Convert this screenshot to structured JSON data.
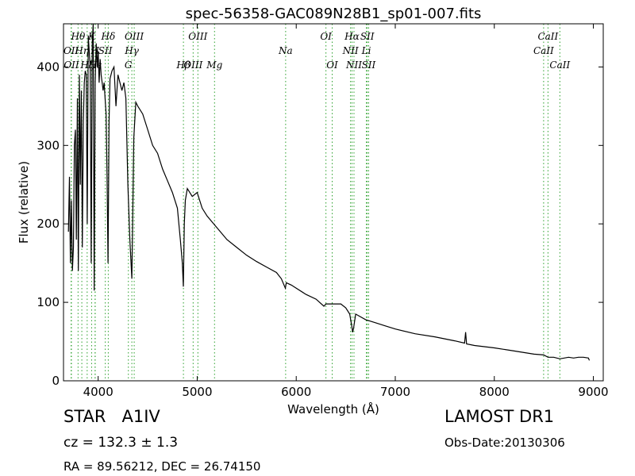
{
  "chart_data": {
    "type": "line",
    "title": "spec-56358-GAC089N28B1_sp01-007.fits",
    "xlabel": "Wavelength (Å)",
    "ylabel": "Flux (relative)",
    "xlim": [
      3650,
      9100
    ],
    "ylim": [
      0,
      455
    ],
    "xticks": [
      4000,
      5000,
      6000,
      7000,
      8000,
      9000
    ],
    "yticks": [
      0,
      100,
      200,
      300,
      400
    ],
    "grid": false,
    "line_color": "#000000",
    "marker_color": "#2ca02c",
    "spectrum": {
      "x": [
        3700,
        3710,
        3720,
        3730,
        3740,
        3750,
        3760,
        3770,
        3780,
        3790,
        3800,
        3810,
        3820,
        3830,
        3840,
        3850,
        3860,
        3870,
        3880,
        3890,
        3900,
        3910,
        3920,
        3930,
        3940,
        3950,
        3960,
        3970,
        3980,
        3990,
        4000,
        4010,
        4020,
        4030,
        4040,
        4050,
        4060,
        4070,
        4080,
        4090,
        4100,
        4110,
        4120,
        4140,
        4160,
        4180,
        4200,
        4220,
        4240,
        4260,
        4280,
        4300,
        4320,
        4340,
        4360,
        4380,
        4400,
        4450,
        4500,
        4550,
        4600,
        4650,
        4700,
        4750,
        4800,
        4830,
        4850,
        4860,
        4870,
        4880,
        4900,
        4950,
        5000,
        5050,
        5100,
        5200,
        5300,
        5400,
        5500,
        5600,
        5700,
        5800,
        5850,
        5890,
        5900,
        5950,
        6000,
        6100,
        6200,
        6280,
        6300,
        6350,
        6400,
        6450,
        6500,
        6540,
        6560,
        6570,
        6580,
        6600,
        6700,
        6800,
        6900,
        7000,
        7200,
        7400,
        7600,
        7700,
        7710,
        7720,
        7800,
        8000,
        8200,
        8400,
        8498,
        8542,
        8600,
        8662,
        8750,
        8800,
        8850,
        8900,
        8950,
        8960
      ],
      "y": [
        190,
        260,
        150,
        230,
        140,
        170,
        300,
        320,
        180,
        360,
        140,
        390,
        250,
        370,
        170,
        330,
        380,
        395,
        390,
        200,
        440,
        420,
        400,
        150,
        430,
        460,
        115,
        380,
        430,
        400,
        420,
        380,
        410,
        390,
        380,
        370,
        380,
        360,
        340,
        260,
        150,
        330,
        385,
        395,
        400,
        350,
        390,
        380,
        370,
        380,
        360,
        250,
        180,
        130,
        310,
        355,
        350,
        340,
        320,
        300,
        290,
        270,
        255,
        240,
        220,
        180,
        150,
        120,
        200,
        230,
        245,
        235,
        240,
        220,
        210,
        195,
        180,
        170,
        160,
        152,
        145,
        138,
        130,
        118,
        125,
        122,
        118,
        110,
        104,
        95,
        98,
        98,
        98,
        98,
        93,
        85,
        70,
        62,
        68,
        85,
        78,
        74,
        70,
        66,
        60,
        56,
        51,
        48,
        62,
        47,
        45,
        42,
        38,
        34,
        33,
        30,
        30,
        28,
        30,
        29,
        30,
        30,
        29,
        26
      ]
    },
    "line_markers": [
      {
        "label": "Hθ",
        "x": 3797,
        "row": 1
      },
      {
        "label": "K",
        "x": 3934,
        "row": 1
      },
      {
        "label": "Hδ",
        "x": 4102,
        "row": 1
      },
      {
        "label": "OIII",
        "x": 4364,
        "row": 1
      },
      {
        "label": "OIII",
        "x": 5007,
        "row": 1
      },
      {
        "label": "OI",
        "x": 6300,
        "row": 1
      },
      {
        "label": "Hα",
        "x": 6563,
        "row": 1
      },
      {
        "label": "SII",
        "x": 6717,
        "row": 1
      },
      {
        "label": "CaII",
        "x": 8542,
        "row": 1
      },
      {
        "label": "OII",
        "x": 3727,
        "row": 2
      },
      {
        "label": "Hη",
        "x": 3835,
        "row": 2
      },
      {
        "label": "H",
        "x": 3969,
        "row": 2
      },
      {
        "label": "SII",
        "x": 4072,
        "row": 2
      },
      {
        "label": "Hγ",
        "x": 4340,
        "row": 2
      },
      {
        "label": "Na",
        "x": 5893,
        "row": 2
      },
      {
        "label": "NII",
        "x": 6548,
        "row": 2
      },
      {
        "label": "Li",
        "x": 6708,
        "row": 2
      },
      {
        "label": "CaII",
        "x": 8498,
        "row": 2
      },
      {
        "label": "OII",
        "x": 3730,
        "row": 3
      },
      {
        "label": "Hζ",
        "x": 3889,
        "row": 3
      },
      {
        "label": "Hε",
        "x": 3970,
        "row": 3
      },
      {
        "label": "G",
        "x": 4305,
        "row": 3
      },
      {
        "label": "Hβ",
        "x": 4861,
        "row": 3
      },
      {
        "label": "OIII",
        "x": 4959,
        "row": 3
      },
      {
        "label": "Mg",
        "x": 5175,
        "row": 3
      },
      {
        "label": "OI",
        "x": 6363,
        "row": 3
      },
      {
        "label": "NII",
        "x": 6583,
        "row": 3
      },
      {
        "label": "SII",
        "x": 6731,
        "row": 3
      },
      {
        "label": "CaII",
        "x": 8662,
        "row": 3
      }
    ]
  },
  "footer": {
    "object_type": "STAR",
    "subclass": "A1IV",
    "cz": "cz = 132.3 ± 1.3",
    "radec": "RA = 89.56212, DEC = 26.74150",
    "survey": "LAMOST DR1",
    "obs_date": "Obs-Date:20130306"
  }
}
